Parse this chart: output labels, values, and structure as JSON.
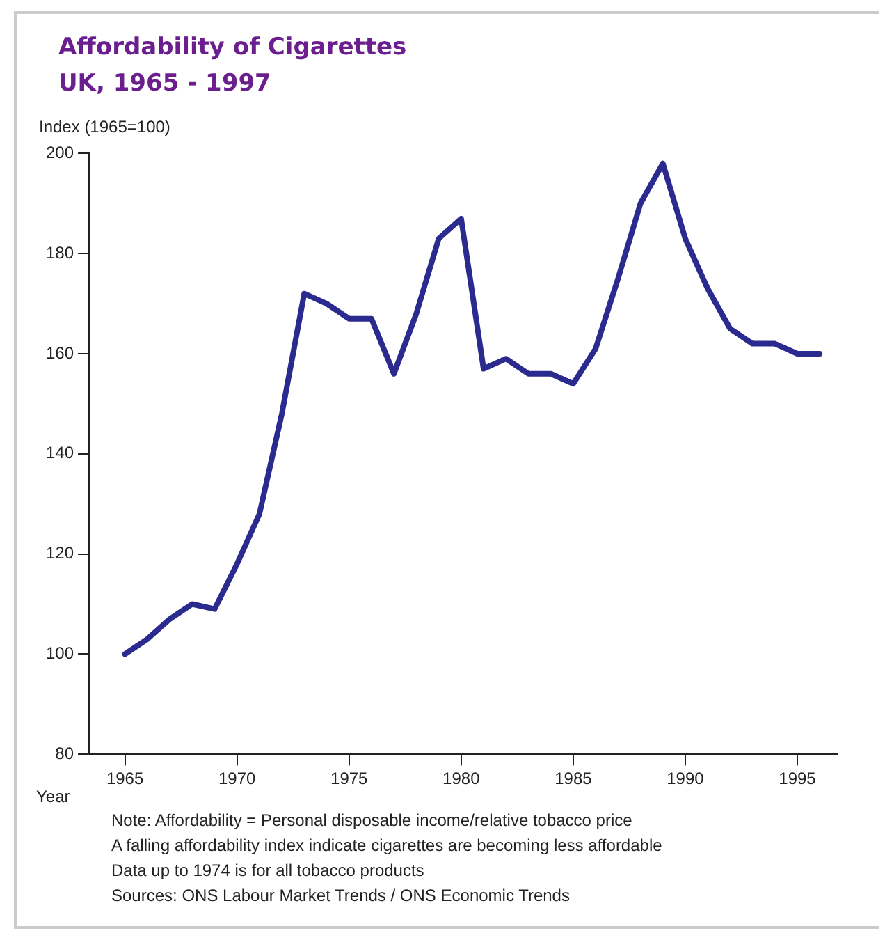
{
  "chart_data": {
    "type": "line",
    "title": "Affordability of Cigarettes",
    "subtitle": "UK, 1965 - 1997",
    "ylabel": "Index (1965=100)",
    "xlabel": "Year",
    "x": [
      1965,
      1966,
      1967,
      1968,
      1969,
      1970,
      1971,
      1972,
      1973,
      1974,
      1975,
      1976,
      1977,
      1978,
      1979,
      1980,
      1981,
      1982,
      1983,
      1984,
      1985,
      1986,
      1987,
      1988,
      1989,
      1990,
      1991,
      1992,
      1993,
      1994,
      1995,
      1996
    ],
    "series": [
      {
        "color": "#2b2b8f",
        "values": [
          100,
          103,
          107,
          110,
          109,
          118,
          128,
          148,
          172,
          170,
          167,
          167,
          156,
          168,
          183,
          187,
          157,
          159,
          156,
          156,
          154,
          161,
          175,
          190,
          198,
          183,
          173,
          165,
          162,
          162,
          160,
          160
        ]
      }
    ],
    "xlim": [
      1963.4,
      1996.8
    ],
    "xticks": [
      1965,
      1970,
      1975,
      1980,
      1985,
      1990,
      1995
    ],
    "ylim": [
      80,
      200
    ],
    "yticks": [
      80,
      100,
      120,
      140,
      160,
      180,
      200
    ],
    "grid": false,
    "legend": false,
    "marker": "none",
    "line_style": "solid",
    "annotations": [
      "Note: Affordability = Personal disposable income/relative tobacco price",
      "A falling affordability index indicate cigarettes are becoming less affordable",
      "Data up to 1974 is for all tobacco products",
      "Sources: ONS Labour Market Trends / ONS Economic Trends"
    ]
  }
}
